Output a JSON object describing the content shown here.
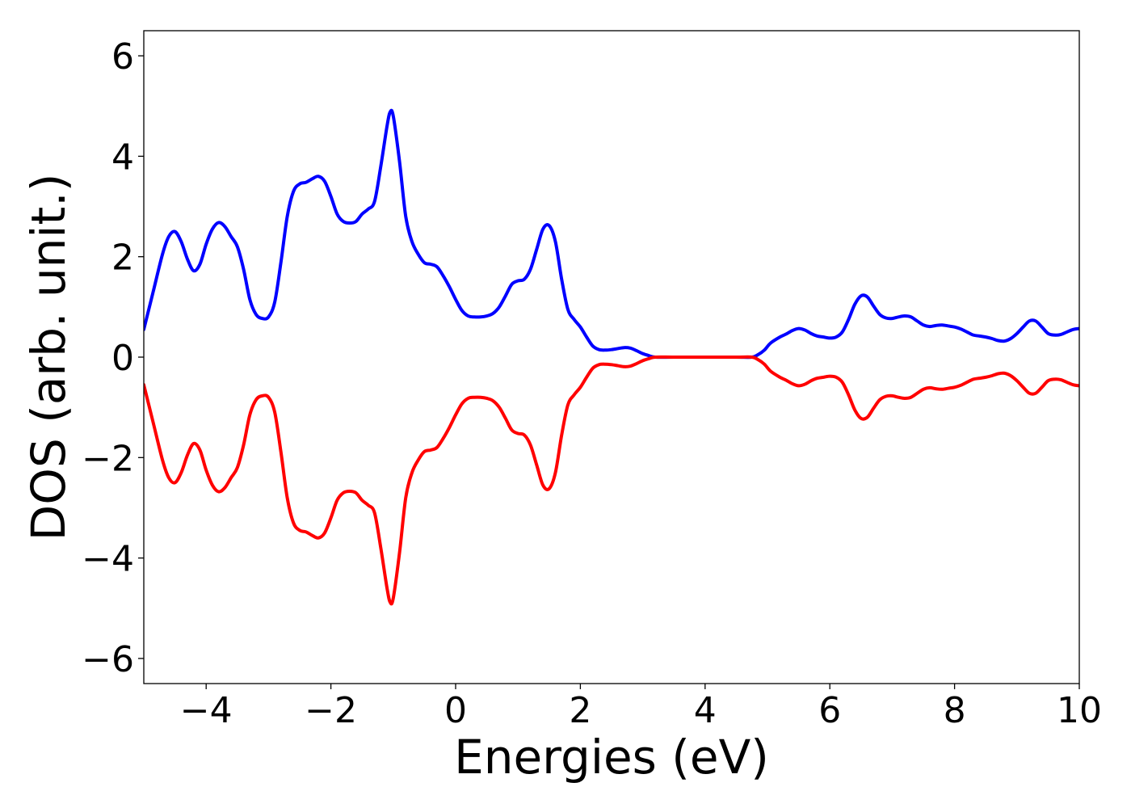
{
  "chart_data": {
    "type": "line",
    "title": "",
    "xlabel": "Energies (eV)",
    "ylabel": "DOS (arb. unit.)",
    "xlim": [
      -5,
      10
    ],
    "ylim": [
      -6.5,
      6.5
    ],
    "xticks": [
      -4,
      -2,
      0,
      2,
      4,
      6,
      8,
      10
    ],
    "xtick_labels": [
      "−4",
      "−2",
      "0",
      "2",
      "4",
      "6",
      "8",
      "10"
    ],
    "yticks": [
      -6,
      -4,
      -2,
      0,
      2,
      4,
      6
    ],
    "ytick_labels": [
      "−6",
      "−4",
      "−2",
      "0",
      "2",
      "4",
      "6"
    ],
    "grid": false,
    "series": [
      {
        "color": "#0000ff",
        "points": [
          [
            -5.0,
            0.55
          ],
          [
            -4.85,
            1.3
          ],
          [
            -4.7,
            2.05
          ],
          [
            -4.6,
            2.4
          ],
          [
            -4.5,
            2.5
          ],
          [
            -4.4,
            2.3
          ],
          [
            -4.3,
            1.95
          ],
          [
            -4.2,
            1.72
          ],
          [
            -4.1,
            1.85
          ],
          [
            -4.0,
            2.25
          ],
          [
            -3.9,
            2.55
          ],
          [
            -3.8,
            2.68
          ],
          [
            -3.7,
            2.6
          ],
          [
            -3.6,
            2.4
          ],
          [
            -3.5,
            2.2
          ],
          [
            -3.4,
            1.75
          ],
          [
            -3.3,
            1.15
          ],
          [
            -3.2,
            0.85
          ],
          [
            -3.1,
            0.77
          ],
          [
            -3.0,
            0.8
          ],
          [
            -2.9,
            1.1
          ],
          [
            -2.8,
            1.9
          ],
          [
            -2.7,
            2.8
          ],
          [
            -2.6,
            3.3
          ],
          [
            -2.5,
            3.45
          ],
          [
            -2.4,
            3.48
          ],
          [
            -2.3,
            3.55
          ],
          [
            -2.2,
            3.6
          ],
          [
            -2.1,
            3.5
          ],
          [
            -2.0,
            3.2
          ],
          [
            -1.9,
            2.85
          ],
          [
            -1.8,
            2.7
          ],
          [
            -1.7,
            2.67
          ],
          [
            -1.6,
            2.7
          ],
          [
            -1.5,
            2.85
          ],
          [
            -1.4,
            2.95
          ],
          [
            -1.3,
            3.1
          ],
          [
            -1.2,
            3.8
          ],
          [
            -1.1,
            4.6
          ],
          [
            -1.05,
            4.88
          ],
          [
            -1.0,
            4.8
          ],
          [
            -0.9,
            3.9
          ],
          [
            -0.8,
            2.8
          ],
          [
            -0.7,
            2.3
          ],
          [
            -0.6,
            2.05
          ],
          [
            -0.5,
            1.88
          ],
          [
            -0.4,
            1.85
          ],
          [
            -0.3,
            1.8
          ],
          [
            -0.2,
            1.62
          ],
          [
            -0.1,
            1.4
          ],
          [
            0.0,
            1.15
          ],
          [
            0.1,
            0.93
          ],
          [
            0.2,
            0.82
          ],
          [
            0.3,
            0.8
          ],
          [
            0.4,
            0.8
          ],
          [
            0.5,
            0.82
          ],
          [
            0.6,
            0.87
          ],
          [
            0.7,
            1.0
          ],
          [
            0.8,
            1.22
          ],
          [
            0.9,
            1.45
          ],
          [
            1.0,
            1.52
          ],
          [
            1.1,
            1.55
          ],
          [
            1.2,
            1.75
          ],
          [
            1.3,
            2.15
          ],
          [
            1.4,
            2.55
          ],
          [
            1.5,
            2.62
          ],
          [
            1.6,
            2.3
          ],
          [
            1.7,
            1.55
          ],
          [
            1.8,
            0.95
          ],
          [
            1.9,
            0.75
          ],
          [
            2.0,
            0.6
          ],
          [
            2.1,
            0.4
          ],
          [
            2.2,
            0.22
          ],
          [
            2.3,
            0.15
          ],
          [
            2.4,
            0.14
          ],
          [
            2.5,
            0.15
          ],
          [
            2.6,
            0.17
          ],
          [
            2.7,
            0.19
          ],
          [
            2.8,
            0.18
          ],
          [
            2.9,
            0.13
          ],
          [
            3.0,
            0.07
          ],
          [
            3.1,
            0.03
          ],
          [
            3.2,
            0.0
          ],
          [
            3.5,
            0.0
          ],
          [
            4.0,
            0.0
          ],
          [
            4.5,
            0.0
          ],
          [
            4.75,
            0.0
          ],
          [
            4.85,
            0.05
          ],
          [
            4.95,
            0.14
          ],
          [
            5.05,
            0.28
          ],
          [
            5.2,
            0.4
          ],
          [
            5.3,
            0.46
          ],
          [
            5.4,
            0.53
          ],
          [
            5.5,
            0.57
          ],
          [
            5.6,
            0.54
          ],
          [
            5.7,
            0.47
          ],
          [
            5.8,
            0.42
          ],
          [
            5.9,
            0.4
          ],
          [
            6.0,
            0.38
          ],
          [
            6.1,
            0.4
          ],
          [
            6.2,
            0.5
          ],
          [
            6.3,
            0.75
          ],
          [
            6.4,
            1.05
          ],
          [
            6.5,
            1.22
          ],
          [
            6.6,
            1.2
          ],
          [
            6.7,
            1.02
          ],
          [
            6.8,
            0.85
          ],
          [
            6.9,
            0.78
          ],
          [
            7.0,
            0.77
          ],
          [
            7.1,
            0.8
          ],
          [
            7.2,
            0.82
          ],
          [
            7.3,
            0.8
          ],
          [
            7.4,
            0.72
          ],
          [
            7.5,
            0.64
          ],
          [
            7.6,
            0.61
          ],
          [
            7.7,
            0.63
          ],
          [
            7.8,
            0.64
          ],
          [
            7.9,
            0.62
          ],
          [
            8.0,
            0.6
          ],
          [
            8.1,
            0.56
          ],
          [
            8.2,
            0.5
          ],
          [
            8.3,
            0.44
          ],
          [
            8.4,
            0.42
          ],
          [
            8.5,
            0.4
          ],
          [
            8.6,
            0.37
          ],
          [
            8.7,
            0.33
          ],
          [
            8.8,
            0.32
          ],
          [
            8.9,
            0.37
          ],
          [
            9.0,
            0.47
          ],
          [
            9.1,
            0.6
          ],
          [
            9.2,
            0.72
          ],
          [
            9.3,
            0.72
          ],
          [
            9.4,
            0.6
          ],
          [
            9.5,
            0.47
          ],
          [
            9.6,
            0.44
          ],
          [
            9.7,
            0.45
          ],
          [
            9.8,
            0.5
          ],
          [
            9.9,
            0.55
          ],
          [
            10.0,
            0.57
          ]
        ]
      },
      {
        "color": "#ff0000",
        "points": [
          [
            -5.0,
            -0.55
          ],
          [
            -4.85,
            -1.3
          ],
          [
            -4.7,
            -2.05
          ],
          [
            -4.6,
            -2.4
          ],
          [
            -4.5,
            -2.5
          ],
          [
            -4.4,
            -2.3
          ],
          [
            -4.3,
            -1.95
          ],
          [
            -4.2,
            -1.72
          ],
          [
            -4.1,
            -1.85
          ],
          [
            -4.0,
            -2.25
          ],
          [
            -3.9,
            -2.55
          ],
          [
            -3.8,
            -2.68
          ],
          [
            -3.7,
            -2.6
          ],
          [
            -3.6,
            -2.4
          ],
          [
            -3.5,
            -2.2
          ],
          [
            -3.4,
            -1.75
          ],
          [
            -3.3,
            -1.15
          ],
          [
            -3.2,
            -0.85
          ],
          [
            -3.1,
            -0.77
          ],
          [
            -3.0,
            -0.8
          ],
          [
            -2.9,
            -1.1
          ],
          [
            -2.8,
            -1.9
          ],
          [
            -2.7,
            -2.8
          ],
          [
            -2.6,
            -3.3
          ],
          [
            -2.5,
            -3.45
          ],
          [
            -2.4,
            -3.48
          ],
          [
            -2.3,
            -3.55
          ],
          [
            -2.2,
            -3.6
          ],
          [
            -2.1,
            -3.5
          ],
          [
            -2.0,
            -3.2
          ],
          [
            -1.9,
            -2.85
          ],
          [
            -1.8,
            -2.7
          ],
          [
            -1.7,
            -2.67
          ],
          [
            -1.6,
            -2.7
          ],
          [
            -1.5,
            -2.85
          ],
          [
            -1.4,
            -2.95
          ],
          [
            -1.3,
            -3.1
          ],
          [
            -1.2,
            -3.8
          ],
          [
            -1.1,
            -4.6
          ],
          [
            -1.05,
            -4.88
          ],
          [
            -1.0,
            -4.8
          ],
          [
            -0.9,
            -3.9
          ],
          [
            -0.8,
            -2.8
          ],
          [
            -0.7,
            -2.3
          ],
          [
            -0.6,
            -2.05
          ],
          [
            -0.5,
            -1.88
          ],
          [
            -0.4,
            -1.85
          ],
          [
            -0.3,
            -1.8
          ],
          [
            -0.2,
            -1.62
          ],
          [
            -0.1,
            -1.4
          ],
          [
            0.0,
            -1.15
          ],
          [
            0.1,
            -0.93
          ],
          [
            0.2,
            -0.82
          ],
          [
            0.3,
            -0.8
          ],
          [
            0.4,
            -0.8
          ],
          [
            0.5,
            -0.82
          ],
          [
            0.6,
            -0.87
          ],
          [
            0.7,
            -1.0
          ],
          [
            0.8,
            -1.22
          ],
          [
            0.9,
            -1.45
          ],
          [
            1.0,
            -1.52
          ],
          [
            1.1,
            -1.55
          ],
          [
            1.2,
            -1.75
          ],
          [
            1.3,
            -2.15
          ],
          [
            1.4,
            -2.55
          ],
          [
            1.5,
            -2.62
          ],
          [
            1.6,
            -2.3
          ],
          [
            1.7,
            -1.55
          ],
          [
            1.8,
            -0.95
          ],
          [
            1.9,
            -0.75
          ],
          [
            2.0,
            -0.6
          ],
          [
            2.1,
            -0.4
          ],
          [
            2.2,
            -0.22
          ],
          [
            2.3,
            -0.15
          ],
          [
            2.4,
            -0.14
          ],
          [
            2.5,
            -0.15
          ],
          [
            2.6,
            -0.17
          ],
          [
            2.7,
            -0.19
          ],
          [
            2.8,
            -0.18
          ],
          [
            2.9,
            -0.13
          ],
          [
            3.0,
            -0.07
          ],
          [
            3.1,
            -0.03
          ],
          [
            3.2,
            0.0
          ],
          [
            3.5,
            0.0
          ],
          [
            4.0,
            0.0
          ],
          [
            4.5,
            0.0
          ],
          [
            4.75,
            0.0
          ],
          [
            4.85,
            -0.05
          ],
          [
            4.95,
            -0.14
          ],
          [
            5.05,
            -0.28
          ],
          [
            5.2,
            -0.4
          ],
          [
            5.3,
            -0.46
          ],
          [
            5.4,
            -0.53
          ],
          [
            5.5,
            -0.57
          ],
          [
            5.6,
            -0.54
          ],
          [
            5.7,
            -0.47
          ],
          [
            5.8,
            -0.42
          ],
          [
            5.9,
            -0.4
          ],
          [
            6.0,
            -0.38
          ],
          [
            6.1,
            -0.4
          ],
          [
            6.2,
            -0.5
          ],
          [
            6.3,
            -0.75
          ],
          [
            6.4,
            -1.05
          ],
          [
            6.5,
            -1.22
          ],
          [
            6.6,
            -1.2
          ],
          [
            6.7,
            -1.02
          ],
          [
            6.8,
            -0.85
          ],
          [
            6.9,
            -0.78
          ],
          [
            7.0,
            -0.77
          ],
          [
            7.1,
            -0.8
          ],
          [
            7.2,
            -0.82
          ],
          [
            7.3,
            -0.8
          ],
          [
            7.4,
            -0.72
          ],
          [
            7.5,
            -0.64
          ],
          [
            7.6,
            -0.61
          ],
          [
            7.7,
            -0.63
          ],
          [
            7.8,
            -0.64
          ],
          [
            7.9,
            -0.62
          ],
          [
            8.0,
            -0.6
          ],
          [
            8.1,
            -0.56
          ],
          [
            8.2,
            -0.5
          ],
          [
            8.3,
            -0.44
          ],
          [
            8.4,
            -0.42
          ],
          [
            8.5,
            -0.4
          ],
          [
            8.6,
            -0.37
          ],
          [
            8.7,
            -0.33
          ],
          [
            8.8,
            -0.32
          ],
          [
            8.9,
            -0.37
          ],
          [
            9.0,
            -0.47
          ],
          [
            9.1,
            -0.6
          ],
          [
            9.2,
            -0.72
          ],
          [
            9.3,
            -0.72
          ],
          [
            9.4,
            -0.6
          ],
          [
            9.5,
            -0.47
          ],
          [
            9.6,
            -0.44
          ],
          [
            9.7,
            -0.45
          ],
          [
            9.8,
            -0.5
          ],
          [
            9.9,
            -0.55
          ],
          [
            10.0,
            -0.57
          ]
        ]
      }
    ]
  }
}
